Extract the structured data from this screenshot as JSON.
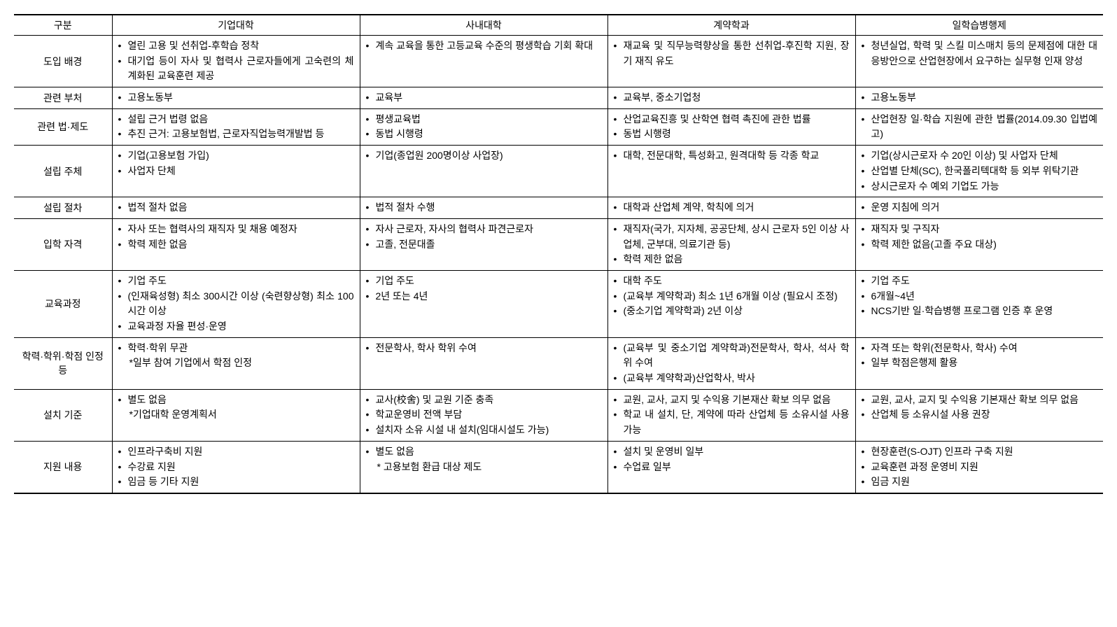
{
  "headers": [
    "구분",
    "기업대학",
    "사내대학",
    "계약학과",
    "일학습병행제"
  ],
  "rows": [
    {
      "label": "도입 배경",
      "cells": [
        {
          "items": [
            {
              "t": "b",
              "v": "열린 고용 및 선취업-후학습 정착"
            },
            {
              "t": "b",
              "v": "대기업 등이 자사 및 협력사 근로자들에게 고숙련의 체계화된 교육훈련 제공"
            }
          ]
        },
        {
          "items": [
            {
              "t": "b",
              "v": "계속 교육을 통한 고등교육 수준의 평생학습 기회 확대"
            }
          ]
        },
        {
          "items": [
            {
              "t": "b",
              "v": "재교육 및 직무능력향상을 통한 선취업-후진학 지원, 장기 재직 유도"
            }
          ]
        },
        {
          "items": [
            {
              "t": "b",
              "v": "청년실업, 학력 및 스킬 미스매치 등의 문제점에 대한 대응방안으로 산업현장에서 요구하는 실무형 인재 양성"
            }
          ]
        }
      ]
    },
    {
      "label": "관련 부처",
      "cells": [
        {
          "items": [
            {
              "t": "b",
              "v": "고용노동부"
            }
          ]
        },
        {
          "items": [
            {
              "t": "b",
              "v": "교육부"
            }
          ]
        },
        {
          "items": [
            {
              "t": "b",
              "v": "교육부, 중소기업청"
            }
          ]
        },
        {
          "items": [
            {
              "t": "b",
              "v": "고용노동부"
            }
          ]
        }
      ]
    },
    {
      "label": "관련 법·제도",
      "cells": [
        {
          "items": [
            {
              "t": "b",
              "v": "설립 근거 법령 없음"
            },
            {
              "t": "b",
              "v": "추진 근거: 고용보험법, 근로자직업능력개발법 등"
            }
          ]
        },
        {
          "items": [
            {
              "t": "b",
              "v": "평생교육법"
            },
            {
              "t": "b",
              "v": "동법 시행령"
            }
          ]
        },
        {
          "items": [
            {
              "t": "b",
              "v": "산업교육진흥 및 산학연 협력 촉진에 관한 법률"
            },
            {
              "t": "b",
              "v": "동법 시행령"
            }
          ]
        },
        {
          "items": [
            {
              "t": "b",
              "v": "산업현장 일·학습 지원에 관한 법률(2014.09.30 입법예고)"
            }
          ]
        }
      ]
    },
    {
      "label": "설립 주체",
      "cells": [
        {
          "items": [
            {
              "t": "b",
              "v": "기업(고용보험 가입)"
            },
            {
              "t": "b",
              "v": "사업자 단체"
            }
          ]
        },
        {
          "items": [
            {
              "t": "b",
              "v": "기업(종업원 200명이상 사업장)"
            }
          ]
        },
        {
          "items": [
            {
              "t": "b",
              "v": "대학, 전문대학, 특성화고, 원격대학 등 각종 학교"
            }
          ]
        },
        {
          "items": [
            {
              "t": "b",
              "v": "기업(상시근로자 수 20인 이상) 및 사업자 단체"
            },
            {
              "t": "b",
              "v": "산업별 단체(SC), 한국폴리텍대학 등 외부 위탁기관"
            },
            {
              "t": "b",
              "v": "상시근로자 수 예외 기업도 가능"
            }
          ]
        }
      ]
    },
    {
      "label": "설립 절차",
      "cells": [
        {
          "items": [
            {
              "t": "b",
              "v": "법적 절차 없음"
            }
          ]
        },
        {
          "items": [
            {
              "t": "b",
              "v": "법적 절차 수행"
            }
          ]
        },
        {
          "items": [
            {
              "t": "b",
              "v": "대학과 산업체 계약, 학칙에 의거"
            }
          ]
        },
        {
          "items": [
            {
              "t": "b",
              "v": "운영 지침에 의거"
            }
          ]
        }
      ]
    },
    {
      "label": "입학 자격",
      "cells": [
        {
          "items": [
            {
              "t": "b",
              "v": "자사 또는 협력사의 재직자 및 채용 예정자"
            },
            {
              "t": "b",
              "v": "학력 제한 없음"
            }
          ]
        },
        {
          "items": [
            {
              "t": "b",
              "v": "자사 근로자, 자사의 협력사 파견근로자"
            },
            {
              "t": "b",
              "v": "고졸, 전문대졸"
            }
          ]
        },
        {
          "items": [
            {
              "t": "b",
              "v": "재직자(국가, 지자체, 공공단체, 상시 근로자 5인 이상 사업체, 군부대, 의료기관 등)"
            },
            {
              "t": "b",
              "v": "학력 제한 없음"
            }
          ]
        },
        {
          "items": [
            {
              "t": "b",
              "v": "재직자 및 구직자"
            },
            {
              "t": "b",
              "v": "학력 제한 없음(고졸 주요 대상)"
            }
          ]
        }
      ]
    },
    {
      "label": "교육과정",
      "cells": [
        {
          "items": [
            {
              "t": "b",
              "v": "기업 주도"
            },
            {
              "t": "b",
              "v": "(인재육성형) 최소 300시간 이상 (숙련향상형) 최소 100시간 이상"
            },
            {
              "t": "b",
              "v": "교육과정 자율 편성·운영"
            }
          ]
        },
        {
          "items": [
            {
              "t": "b",
              "v": "기업 주도"
            },
            {
              "t": "b",
              "v": "2년 또는 4년"
            }
          ]
        },
        {
          "items": [
            {
              "t": "b",
              "v": "대학 주도"
            },
            {
              "t": "b",
              "v": "(교육부 계약학과) 최소 1년 6개월 이상 (필요시 조정)"
            },
            {
              "t": "b",
              "v": "(중소기업 계약학과) 2년 이상"
            }
          ]
        },
        {
          "items": [
            {
              "t": "b",
              "v": "기업 주도"
            },
            {
              "t": "b",
              "v": "6개월~4년"
            },
            {
              "t": "b",
              "v": "NCS기반 일·학습병행 프로그램 인증 후 운영"
            }
          ]
        }
      ]
    },
    {
      "label": "학력·학위·학점 인정 등",
      "cells": [
        {
          "items": [
            {
              "t": "b",
              "v": "학력·학위 무관"
            },
            {
              "t": "n",
              "v": "*일부 참여 기업에서 학점 인정"
            }
          ]
        },
        {
          "items": [
            {
              "t": "b",
              "v": "전문학사, 학사 학위 수여"
            }
          ]
        },
        {
          "items": [
            {
              "t": "b",
              "v": "(교육부 및 중소기업 계약학과)전문학사, 학사, 석사 학위 수여"
            },
            {
              "t": "b",
              "v": "(교육부 계약학과)산업학사, 박사"
            }
          ]
        },
        {
          "items": [
            {
              "t": "b",
              "v": "자격 또는 학위(전문학사, 학사) 수여"
            },
            {
              "t": "b",
              "v": "일부 학점은행제 활용"
            }
          ]
        }
      ]
    },
    {
      "label": "설치 기준",
      "cells": [
        {
          "items": [
            {
              "t": "b",
              "v": "별도 없음"
            },
            {
              "t": "n",
              "v": "*기업대학 운영계획서"
            }
          ]
        },
        {
          "items": [
            {
              "t": "b",
              "v": "교사(校舍) 및 교원 기준 충족"
            },
            {
              "t": "b",
              "v": "학교운영비 전액 부담"
            },
            {
              "t": "b",
              "v": "설치자 소유 시설 내 설치(임대시설도 가능)"
            }
          ]
        },
        {
          "items": [
            {
              "t": "b",
              "v": "교원, 교사, 교지 및 수익용 기본재산 확보 의무 없음"
            },
            {
              "t": "b",
              "v": "학교 내 설치, 단, 계약에 따라 산업체 등 소유시설 사용 가능"
            }
          ]
        },
        {
          "items": [
            {
              "t": "b",
              "v": "교원, 교사, 교지 및 수익용 기본재산 확보 의무 없음"
            },
            {
              "t": "b",
              "v": "산업체 등 소유시설 사용 권장"
            }
          ]
        }
      ]
    },
    {
      "label": "지원 내용",
      "cells": [
        {
          "items": [
            {
              "t": "b",
              "v": "인프라구축비 지원"
            },
            {
              "t": "b",
              "v": "수강료 지원"
            },
            {
              "t": "b",
              "v": "임금 등 기타 지원"
            }
          ]
        },
        {
          "items": [
            {
              "t": "b",
              "v": "별도 없음"
            },
            {
              "t": "n",
              "v": "* 고용보험 환급 대상 제도"
            }
          ]
        },
        {
          "items": [
            {
              "t": "b",
              "v": "설치 및 운영비 일부"
            },
            {
              "t": "b",
              "v": "수업료 일부"
            }
          ]
        },
        {
          "items": [
            {
              "t": "b",
              "v": "현장훈련(S-OJT) 인프라 구축 지원"
            },
            {
              "t": "b",
              "v": "교육훈련 과정 운영비 지원"
            },
            {
              "t": "b",
              "v": "임금 지원"
            }
          ]
        }
      ]
    }
  ]
}
